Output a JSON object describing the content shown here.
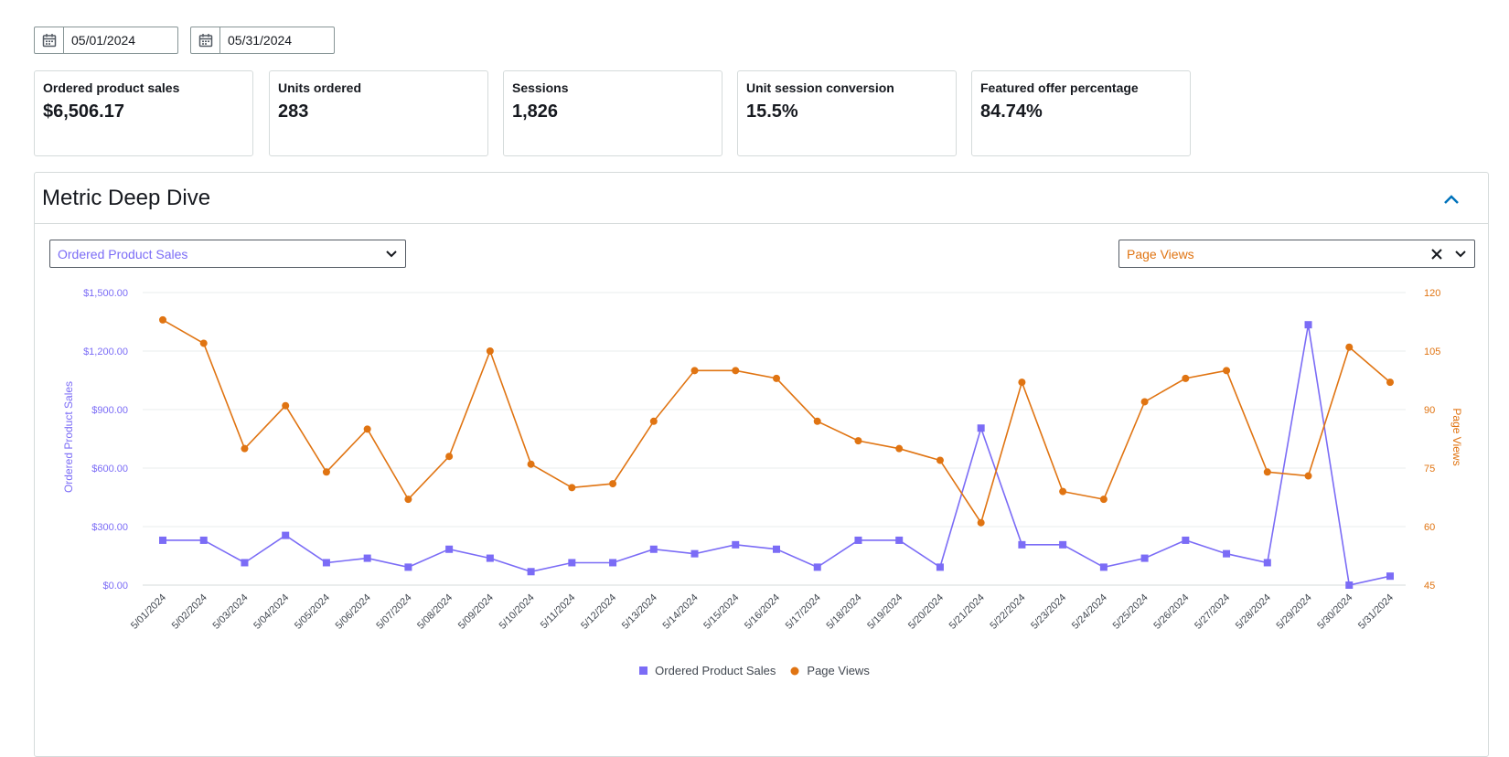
{
  "date_range": {
    "start": "05/01/2024",
    "end": "05/31/2024"
  },
  "metrics": [
    {
      "label": "Ordered product sales",
      "value": "$6,506.17"
    },
    {
      "label": "Units ordered",
      "value": "283"
    },
    {
      "label": "Sessions",
      "value": "1,826"
    },
    {
      "label": "Unit session conversion",
      "value": "15.5%"
    },
    {
      "label": "Featured offer percentage",
      "value": "84.74%"
    }
  ],
  "deep_dive": {
    "title": "Metric Deep Dive",
    "left_metric": "Ordered Product Sales",
    "right_metric": "Page Views"
  },
  "colors": {
    "sales": "#7b6cf6",
    "views": "#e07412",
    "grid": "#eaeded",
    "axis": "#d5dbdb"
  },
  "icons": [
    "calendar-icon",
    "chevron-up-icon",
    "chevron-down-icon",
    "close-icon"
  ],
  "chart_data": {
    "type": "line",
    "categories": [
      "5/01/2024",
      "5/02/2024",
      "5/03/2024",
      "5/04/2024",
      "5/05/2024",
      "5/06/2024",
      "5/07/2024",
      "5/08/2024",
      "5/09/2024",
      "5/10/2024",
      "5/11/2024",
      "5/12/2024",
      "5/13/2024",
      "5/14/2024",
      "5/15/2024",
      "5/16/2024",
      "5/17/2024",
      "5/18/2024",
      "5/19/2024",
      "5/20/2024",
      "5/21/2024",
      "5/22/2024",
      "5/23/2024",
      "5/24/2024",
      "5/25/2024",
      "5/26/2024",
      "5/27/2024",
      "5/28/2024",
      "5/29/2024",
      "5/30/2024",
      "5/31/2024"
    ],
    "series": [
      {
        "name": "Ordered Product Sales",
        "axis": "left",
        "marker": "square",
        "values": [
          230,
          230,
          115,
          255,
          115,
          138,
          92,
          184,
          138,
          69,
          115,
          115,
          184,
          161,
          207,
          184,
          92,
          230,
          230,
          92,
          805,
          207,
          207,
          92,
          138,
          230,
          161,
          115,
          1335,
          0,
          46
        ]
      },
      {
        "name": "Page Views",
        "axis": "right",
        "marker": "circle",
        "values": [
          113,
          107,
          80,
          91,
          74,
          85,
          67,
          78,
          105,
          76,
          70,
          71,
          87,
          100,
          100,
          98,
          87,
          82,
          80,
          77,
          61,
          97,
          69,
          67,
          92,
          98,
          100,
          74,
          73,
          106,
          97
        ]
      }
    ],
    "y_left": {
      "label": "Ordered Product Sales",
      "ylim": [
        0,
        1500
      ],
      "ticks": [
        0,
        300,
        600,
        900,
        1200,
        1500
      ],
      "tick_labels": [
        "$0.00",
        "$300.00",
        "$600.00",
        "$900.00",
        "$1,200.00",
        "$1,500.00"
      ]
    },
    "y_right": {
      "label": "Page Views",
      "ylim": [
        45,
        120
      ],
      "ticks": [
        45,
        60,
        75,
        90,
        105,
        120
      ],
      "tick_labels": [
        "45",
        "60",
        "75",
        "90",
        "105",
        "120"
      ]
    },
    "grid": true,
    "legend_placement": "bottom"
  }
}
